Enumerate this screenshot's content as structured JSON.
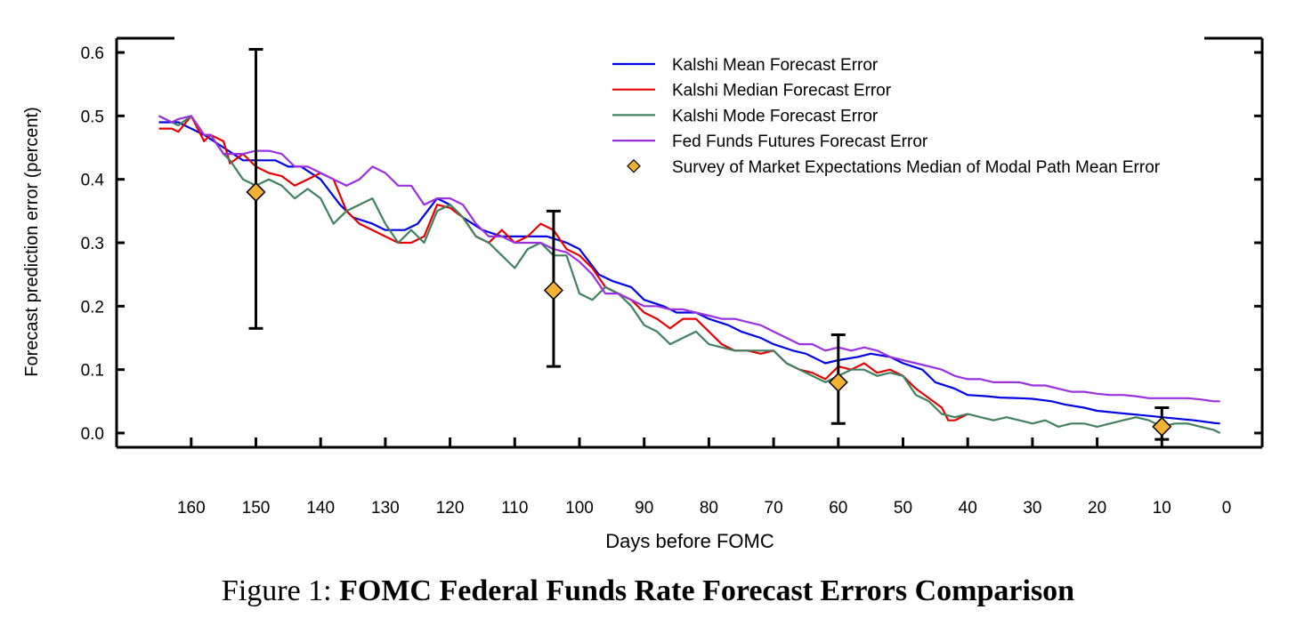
{
  "caption": {
    "label": "Figure 1:",
    "title": "FOMC Federal Funds Rate Forecast Errors Comparison"
  },
  "chart_data": {
    "type": "line",
    "xlabel": "Days before FOMC",
    "ylabel": "Forecast prediction error (percent)",
    "xlim": [
      175,
      0
    ],
    "ylim": [
      -0.025,
      0.625
    ],
    "x_ticks": [
      160,
      150,
      140,
      130,
      120,
      110,
      100,
      90,
      80,
      70,
      60,
      50,
      40,
      30,
      20,
      10,
      0
    ],
    "y_ticks": [
      0.0,
      0.1,
      0.2,
      0.3,
      0.4,
      0.5,
      0.6
    ],
    "y_tick_labels": [
      "0.0",
      "0.1",
      "0.2",
      "0.3",
      "0.4",
      "0.5",
      "0.6"
    ],
    "legend_position": "top-right",
    "series": [
      {
        "name": "Kalshi Mean Forecast Error",
        "color": "#0000e6",
        "points": [
          [
            165,
            0.49
          ],
          [
            162,
            0.49
          ],
          [
            160,
            0.48
          ],
          [
            158,
            0.47
          ],
          [
            155,
            0.45
          ],
          [
            152,
            0.43
          ],
          [
            150,
            0.43
          ],
          [
            147,
            0.43
          ],
          [
            145,
            0.42
          ],
          [
            143,
            0.42
          ],
          [
            140,
            0.4
          ],
          [
            137,
            0.36
          ],
          [
            135,
            0.34
          ],
          [
            132,
            0.33
          ],
          [
            130,
            0.32
          ],
          [
            127,
            0.32
          ],
          [
            125,
            0.33
          ],
          [
            122,
            0.37
          ],
          [
            120,
            0.36
          ],
          [
            118,
            0.34
          ],
          [
            115,
            0.32
          ],
          [
            112,
            0.31
          ],
          [
            110,
            0.31
          ],
          [
            107,
            0.31
          ],
          [
            105,
            0.31
          ],
          [
            102,
            0.3
          ],
          [
            100,
            0.29
          ],
          [
            97,
            0.25
          ],
          [
            95,
            0.24
          ],
          [
            92,
            0.23
          ],
          [
            90,
            0.21
          ],
          [
            87,
            0.2
          ],
          [
            85,
            0.19
          ],
          [
            82,
            0.19
          ],
          [
            80,
            0.18
          ],
          [
            77,
            0.17
          ],
          [
            75,
            0.16
          ],
          [
            72,
            0.15
          ],
          [
            70,
            0.14
          ],
          [
            67,
            0.13
          ],
          [
            65,
            0.125
          ],
          [
            62,
            0.11
          ],
          [
            60,
            0.115
          ],
          [
            57,
            0.12
          ],
          [
            55,
            0.125
          ],
          [
            52,
            0.12
          ],
          [
            50,
            0.11
          ],
          [
            47,
            0.1
          ],
          [
            45,
            0.08
          ],
          [
            42,
            0.07
          ],
          [
            40,
            0.06
          ],
          [
            37,
            0.058
          ],
          [
            35,
            0.056
          ],
          [
            32,
            0.055
          ],
          [
            30,
            0.054
          ],
          [
            27,
            0.05
          ],
          [
            25,
            0.045
          ],
          [
            22,
            0.04
          ],
          [
            20,
            0.035
          ],
          [
            17,
            0.032
          ],
          [
            15,
            0.03
          ],
          [
            12,
            0.027
          ],
          [
            10,
            0.025
          ],
          [
            7,
            0.022
          ],
          [
            5,
            0.02
          ],
          [
            2,
            0.016
          ],
          [
            1,
            0.015
          ]
        ]
      },
      {
        "name": "Kalshi Median Forecast Error",
        "color": "#e60000",
        "points": [
          [
            165,
            0.48
          ],
          [
            163,
            0.48
          ],
          [
            162,
            0.475
          ],
          [
            160,
            0.5
          ],
          [
            158,
            0.46
          ],
          [
            157,
            0.47
          ],
          [
            155,
            0.46
          ],
          [
            154,
            0.425
          ],
          [
            152,
            0.44
          ],
          [
            150,
            0.42
          ],
          [
            148,
            0.41
          ],
          [
            146,
            0.405
          ],
          [
            144,
            0.39
          ],
          [
            142,
            0.4
          ],
          [
            140,
            0.41
          ],
          [
            138,
            0.4
          ],
          [
            136,
            0.35
          ],
          [
            134,
            0.33
          ],
          [
            132,
            0.32
          ],
          [
            130,
            0.31
          ],
          [
            128,
            0.3
          ],
          [
            126,
            0.3
          ],
          [
            124,
            0.31
          ],
          [
            122,
            0.36
          ],
          [
            120,
            0.355
          ],
          [
            118,
            0.34
          ],
          [
            116,
            0.31
          ],
          [
            114,
            0.3
          ],
          [
            112,
            0.32
          ],
          [
            110,
            0.3
          ],
          [
            108,
            0.31
          ],
          [
            106,
            0.33
          ],
          [
            104,
            0.32
          ],
          [
            102,
            0.29
          ],
          [
            100,
            0.28
          ],
          [
            98,
            0.26
          ],
          [
            96,
            0.23
          ],
          [
            94,
            0.22
          ],
          [
            92,
            0.21
          ],
          [
            90,
            0.19
          ],
          [
            88,
            0.18
          ],
          [
            86,
            0.165
          ],
          [
            84,
            0.18
          ],
          [
            82,
            0.18
          ],
          [
            80,
            0.16
          ],
          [
            78,
            0.14
          ],
          [
            76,
            0.13
          ],
          [
            74,
            0.13
          ],
          [
            72,
            0.125
          ],
          [
            70,
            0.13
          ],
          [
            68,
            0.11
          ],
          [
            66,
            0.1
          ],
          [
            64,
            0.095
          ],
          [
            62,
            0.085
          ],
          [
            60,
            0.105
          ],
          [
            58,
            0.1
          ],
          [
            56,
            0.11
          ],
          [
            54,
            0.095
          ],
          [
            52,
            0.1
          ],
          [
            50,
            0.09
          ],
          [
            48,
            0.07
          ],
          [
            46,
            0.055
          ],
          [
            44,
            0.04
          ],
          [
            43,
            0.02
          ],
          [
            42,
            0.02
          ],
          [
            40,
            0.03
          ]
        ]
      },
      {
        "name": "Kalshi Mode Forecast Error",
        "color": "#408060",
        "points": [
          [
            165,
            0.5
          ],
          [
            163,
            0.49
          ],
          [
            162,
            0.485
          ],
          [
            160,
            0.5
          ],
          [
            158,
            0.47
          ],
          [
            157,
            0.47
          ],
          [
            155,
            0.44
          ],
          [
            154,
            0.43
          ],
          [
            152,
            0.4
          ],
          [
            150,
            0.39
          ],
          [
            148,
            0.4
          ],
          [
            146,
            0.39
          ],
          [
            144,
            0.37
          ],
          [
            142,
            0.385
          ],
          [
            140,
            0.37
          ],
          [
            138,
            0.33
          ],
          [
            136,
            0.35
          ],
          [
            134,
            0.36
          ],
          [
            132,
            0.37
          ],
          [
            130,
            0.33
          ],
          [
            128,
            0.3
          ],
          [
            126,
            0.32
          ],
          [
            124,
            0.3
          ],
          [
            122,
            0.35
          ],
          [
            120,
            0.36
          ],
          [
            118,
            0.34
          ],
          [
            116,
            0.31
          ],
          [
            114,
            0.3
          ],
          [
            112,
            0.28
          ],
          [
            110,
            0.26
          ],
          [
            108,
            0.29
          ],
          [
            106,
            0.3
          ],
          [
            104,
            0.28
          ],
          [
            102,
            0.28
          ],
          [
            100,
            0.22
          ],
          [
            98,
            0.21
          ],
          [
            96,
            0.23
          ],
          [
            94,
            0.22
          ],
          [
            92,
            0.2
          ],
          [
            90,
            0.17
          ],
          [
            88,
            0.16
          ],
          [
            86,
            0.14
          ],
          [
            84,
            0.15
          ],
          [
            82,
            0.16
          ],
          [
            80,
            0.14
          ],
          [
            78,
            0.135
          ],
          [
            76,
            0.13
          ],
          [
            74,
            0.13
          ],
          [
            72,
            0.13
          ],
          [
            70,
            0.13
          ],
          [
            68,
            0.11
          ],
          [
            66,
            0.1
          ],
          [
            64,
            0.09
          ],
          [
            62,
            0.08
          ],
          [
            60,
            0.09
          ],
          [
            58,
            0.1
          ],
          [
            56,
            0.1
          ],
          [
            54,
            0.09
          ],
          [
            52,
            0.095
          ],
          [
            50,
            0.09
          ],
          [
            48,
            0.06
          ],
          [
            46,
            0.05
          ],
          [
            44,
            0.03
          ],
          [
            42,
            0.025
          ],
          [
            40,
            0.03
          ],
          [
            38,
            0.025
          ],
          [
            36,
            0.02
          ],
          [
            34,
            0.025
          ],
          [
            32,
            0.02
          ],
          [
            30,
            0.015
          ],
          [
            28,
            0.02
          ],
          [
            26,
            0.01
          ],
          [
            24,
            0.015
          ],
          [
            22,
            0.015
          ],
          [
            20,
            0.01
          ],
          [
            18,
            0.015
          ],
          [
            16,
            0.02
          ],
          [
            14,
            0.025
          ],
          [
            12,
            0.02
          ],
          [
            10,
            0.01
          ],
          [
            8,
            0.015
          ],
          [
            6,
            0.015
          ],
          [
            4,
            0.01
          ],
          [
            2,
            0.005
          ],
          [
            1,
            0.0
          ]
        ]
      },
      {
        "name": "Fed Funds Futures Forecast Error",
        "color": "#9b30e0",
        "points": [
          [
            165,
            0.5
          ],
          [
            163,
            0.49
          ],
          [
            162,
            0.495
          ],
          [
            160,
            0.5
          ],
          [
            158,
            0.47
          ],
          [
            157,
            0.47
          ],
          [
            155,
            0.44
          ],
          [
            152,
            0.44
          ],
          [
            150,
            0.445
          ],
          [
            148,
            0.445
          ],
          [
            146,
            0.44
          ],
          [
            144,
            0.42
          ],
          [
            142,
            0.42
          ],
          [
            140,
            0.41
          ],
          [
            138,
            0.4
          ],
          [
            136,
            0.39
          ],
          [
            134,
            0.4
          ],
          [
            132,
            0.42
          ],
          [
            130,
            0.41
          ],
          [
            128,
            0.39
          ],
          [
            126,
            0.39
          ],
          [
            124,
            0.36
          ],
          [
            122,
            0.37
          ],
          [
            120,
            0.37
          ],
          [
            118,
            0.36
          ],
          [
            116,
            0.33
          ],
          [
            114,
            0.31
          ],
          [
            112,
            0.31
          ],
          [
            110,
            0.3
          ],
          [
            108,
            0.3
          ],
          [
            106,
            0.3
          ],
          [
            104,
            0.29
          ],
          [
            102,
            0.285
          ],
          [
            100,
            0.27
          ],
          [
            98,
            0.25
          ],
          [
            96,
            0.22
          ],
          [
            94,
            0.22
          ],
          [
            92,
            0.21
          ],
          [
            90,
            0.2
          ],
          [
            88,
            0.2
          ],
          [
            86,
            0.195
          ],
          [
            84,
            0.195
          ],
          [
            82,
            0.19
          ],
          [
            80,
            0.185
          ],
          [
            78,
            0.18
          ],
          [
            76,
            0.18
          ],
          [
            74,
            0.175
          ],
          [
            72,
            0.17
          ],
          [
            70,
            0.16
          ],
          [
            68,
            0.15
          ],
          [
            66,
            0.14
          ],
          [
            64,
            0.14
          ],
          [
            62,
            0.13
          ],
          [
            60,
            0.135
          ],
          [
            58,
            0.13
          ],
          [
            56,
            0.135
          ],
          [
            54,
            0.13
          ],
          [
            52,
            0.12
          ],
          [
            50,
            0.115
          ],
          [
            48,
            0.11
          ],
          [
            46,
            0.105
          ],
          [
            44,
            0.1
          ],
          [
            42,
            0.09
          ],
          [
            40,
            0.085
          ],
          [
            38,
            0.085
          ],
          [
            36,
            0.08
          ],
          [
            34,
            0.08
          ],
          [
            32,
            0.08
          ],
          [
            30,
            0.075
          ],
          [
            28,
            0.075
          ],
          [
            26,
            0.07
          ],
          [
            24,
            0.065
          ],
          [
            22,
            0.065
          ],
          [
            20,
            0.062
          ],
          [
            18,
            0.06
          ],
          [
            16,
            0.06
          ],
          [
            14,
            0.058
          ],
          [
            12,
            0.055
          ],
          [
            10,
            0.055
          ],
          [
            8,
            0.055
          ],
          [
            6,
            0.055
          ],
          [
            4,
            0.053
          ],
          [
            2,
            0.05
          ],
          [
            1,
            0.05
          ]
        ]
      },
      {
        "name": "Survey of Market Expectations Median of Modal Path Mean Error",
        "color": "#f2b233",
        "marker": "diamond",
        "points": [
          {
            "x": 150,
            "y": 0.38,
            "low": 0.165,
            "high": 0.605
          },
          {
            "x": 104,
            "y": 0.225,
            "low": 0.105,
            "high": 0.35
          },
          {
            "x": 60,
            "y": 0.08,
            "low": 0.015,
            "high": 0.155
          },
          {
            "x": 10,
            "y": 0.01,
            "low": -0.01,
            "high": 0.04
          }
        ]
      }
    ]
  }
}
